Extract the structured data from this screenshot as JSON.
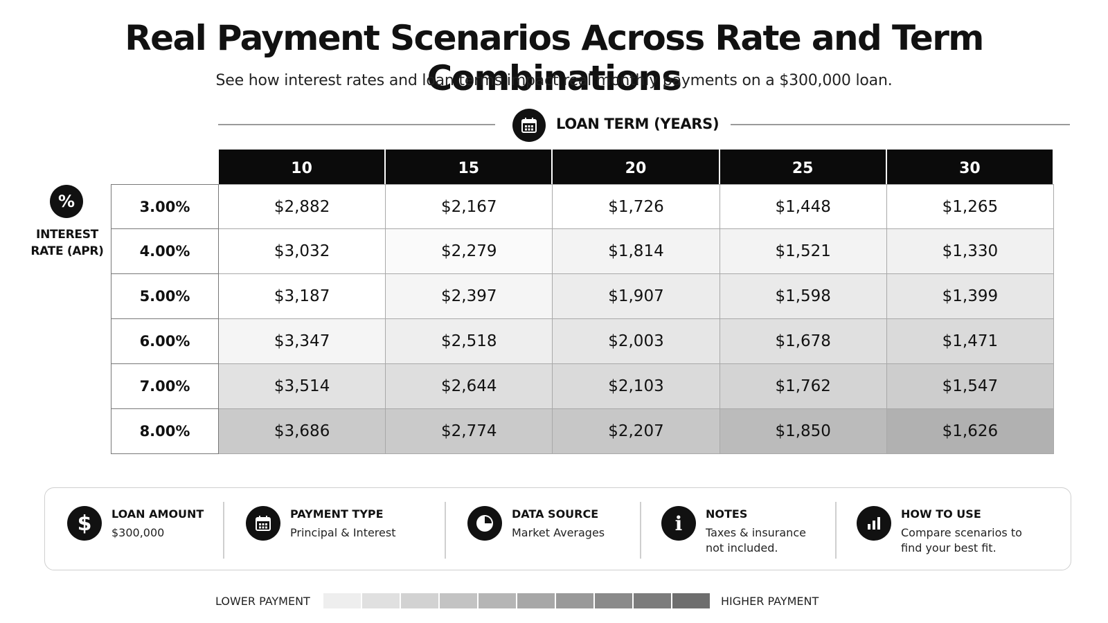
{
  "title": "Real Payment Scenarios Across Rate and Term Combinations",
  "subtitle": "See how interest rates and loan terms impact real monthly payments on a $300,000 loan.",
  "term_axis": {
    "label": "LOAN TERM (YEARS)",
    "icon": "calendar-icon"
  },
  "rate_axis": {
    "symbol": "%",
    "label_line1": "INTEREST",
    "label_line2": "RATE (APR)",
    "icon": "percent-icon"
  },
  "chart_data": {
    "type": "heatmap",
    "title": "Real Payment Scenarios Across Rate and Term Combinations",
    "subtitle": "See how interest rates and loan terms impact real monthly payments on a $300,000 loan.",
    "xlabel": "LOAN TERM (YEARS)",
    "ylabel": "INTEREST RATE (APR)",
    "x": [
      "10",
      "15",
      "20",
      "25",
      "30"
    ],
    "y": [
      "3.00%",
      "4.00%",
      "5.00%",
      "6.00%",
      "7.00%",
      "8.00%"
    ],
    "display_values": [
      [
        "$2,882",
        "$2,167",
        "$1,726",
        "$1,448",
        "$1,265"
      ],
      [
        "$3,032",
        "$2,279",
        "$1,814",
        "$1,521",
        "$1,330"
      ],
      [
        "$3,187",
        "$2,397",
        "$1,907",
        "$1,598",
        "$1,399"
      ],
      [
        "$3,347",
        "$2,518",
        "$2,003",
        "$1,678",
        "$1,471"
      ],
      [
        "$3,514",
        "$2,644",
        "$2,103",
        "$1,762",
        "$1,547"
      ],
      [
        "$3,686",
        "$2,774",
        "$2,207",
        "$1,850",
        "$1,626"
      ]
    ],
    "shade_levels": [
      [
        0.0,
        0.0,
        0.0,
        0.0,
        0.0
      ],
      [
        0.0,
        0.05,
        0.12,
        0.12,
        0.14
      ],
      [
        0.0,
        0.1,
        0.2,
        0.22,
        0.25
      ],
      [
        0.1,
        0.18,
        0.26,
        0.32,
        0.38
      ],
      [
        0.3,
        0.34,
        0.38,
        0.44,
        0.52
      ],
      [
        0.55,
        0.55,
        0.58,
        0.7,
        0.8
      ]
    ],
    "legend": {
      "low_label": "LOWER PAYMENT",
      "high_label": "HIGHER PAYMENT",
      "steps": 10
    }
  },
  "info": [
    {
      "title": "LOAN AMOUNT",
      "text": "$300,000",
      "icon": "dollar-icon"
    },
    {
      "title": "PAYMENT TYPE",
      "text": "Principal & Interest",
      "icon": "calendar-icon"
    },
    {
      "title": "DATA SOURCE",
      "text": "Market Averages",
      "icon": "pie-chart-icon"
    },
    {
      "title": "NOTES",
      "text": "Taxes & insurance\nnot included.",
      "icon": "info-icon"
    },
    {
      "title": "HOW TO USE",
      "text": "Compare scenarios to\nfind your best fit.",
      "icon": "bar-chart-icon"
    }
  ],
  "colors": {
    "header_bg": "#0b0b0b",
    "shade_low": "#ffffff",
    "shade_high": "#9e9e9e",
    "legend_low": "#eeeeee",
    "legend_high": "#6e6e6e"
  }
}
